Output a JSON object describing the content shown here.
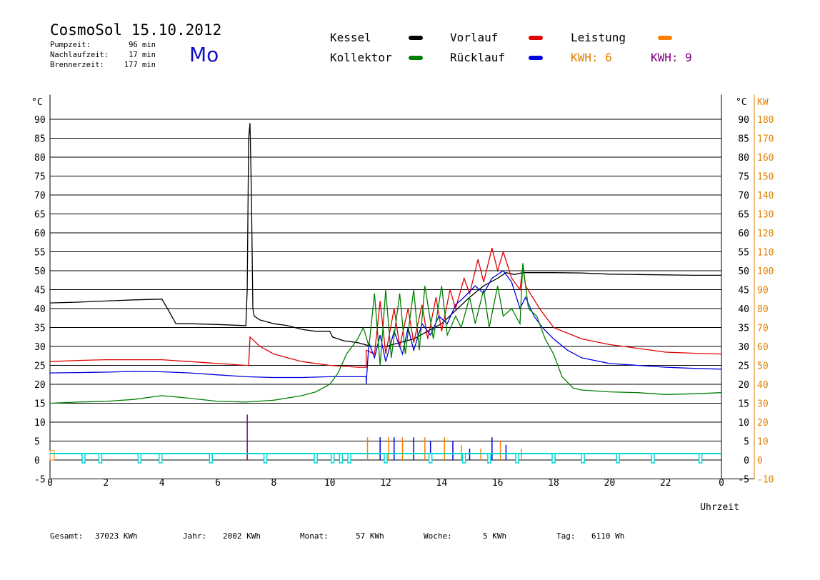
{
  "header": {
    "title": "CosmoSol 15.10.2012",
    "day": "Mo",
    "info": [
      {
        "label": "Pumpzeit:",
        "value": "96 min"
      },
      {
        "label": "Nachlaufzeit:",
        "value": "17 min"
      },
      {
        "label": "Brennerzeit:",
        "value": "177 min"
      }
    ]
  },
  "legend": {
    "kessel": {
      "label": "Kessel",
      "color": "#000000"
    },
    "vorlauf": {
      "label": "Vorlauf",
      "color": "#e00000"
    },
    "leistung": {
      "label": "Leistung",
      "color": "#ff8000"
    },
    "kollektor": {
      "label": "Kollektor",
      "color": "#008000"
    },
    "ruecklauf": {
      "label": "Rücklauf",
      "color": "#0000e0"
    },
    "kwh1": {
      "label": "KWH: 6",
      "color": "#e08000"
    },
    "kwh2": {
      "label": "KWH: 9",
      "color": "#800080"
    }
  },
  "footer": {
    "gesamt": {
      "label": "Gesamt:",
      "value": "37023 KWh"
    },
    "jahr": {
      "label": "Jahr:",
      "value": "2002 KWh"
    },
    "monat": {
      "label": "Monat:",
      "value": "57 KWh"
    },
    "woche": {
      "label": "Woche:",
      "value": "5 KWh"
    },
    "tag": {
      "label": "Tag:",
      "value": "6110 Wh"
    }
  },
  "chart_data": {
    "type": "line",
    "xlabel": "Uhrzeit",
    "ylabel": "°C",
    "y2label": "KW",
    "xlim": [
      0,
      24
    ],
    "ylim": [
      -5,
      95
    ],
    "x_ticks": [
      "0",
      "2",
      "4",
      "6",
      "8",
      "10",
      "12",
      "14",
      "16",
      "18",
      "20",
      "22",
      "0"
    ],
    "y_ticks": [
      -5,
      0,
      5,
      10,
      15,
      20,
      25,
      30,
      35,
      40,
      45,
      50,
      55,
      60,
      65,
      70,
      75,
      80,
      85,
      90
    ],
    "y2_ticks": [
      -10,
      0,
      10,
      20,
      30,
      40,
      50,
      60,
      70,
      80,
      90,
      100,
      110,
      120,
      130,
      140,
      150,
      160,
      170,
      180
    ],
    "colors": {
      "pump": "#00d8d8"
    },
    "series": [
      {
        "name": "Kessel",
        "color": "#000000",
        "points": [
          [
            0,
            41.5
          ],
          [
            1,
            41.7
          ],
          [
            2,
            42
          ],
          [
            3,
            42.3
          ],
          [
            4,
            42.5
          ],
          [
            4.2,
            40
          ],
          [
            4.5,
            36
          ],
          [
            5,
            36
          ],
          [
            6,
            35.8
          ],
          [
            7,
            35.5
          ],
          [
            7.05,
            45
          ],
          [
            7.1,
            85
          ],
          [
            7.15,
            89
          ],
          [
            7.2,
            70
          ],
          [
            7.25,
            40
          ],
          [
            7.3,
            38
          ],
          [
            7.5,
            37
          ],
          [
            8,
            36
          ],
          [
            8.5,
            35.5
          ],
          [
            9,
            34.5
          ],
          [
            9.5,
            34
          ],
          [
            10,
            34
          ],
          [
            10.1,
            32.5
          ],
          [
            10.5,
            31.5
          ],
          [
            11,
            31
          ],
          [
            11.5,
            30
          ],
          [
            12,
            30
          ],
          [
            13,
            32
          ],
          [
            14,
            36
          ],
          [
            15,
            43
          ],
          [
            15.5,
            46
          ],
          [
            16,
            48
          ],
          [
            16.3,
            49.5
          ],
          [
            16.6,
            49
          ],
          [
            16.9,
            49.5
          ],
          [
            17,
            49.5
          ],
          [
            17.5,
            49.5
          ],
          [
            18,
            49.5
          ],
          [
            19,
            49.4
          ],
          [
            20,
            49.1
          ],
          [
            21,
            49
          ],
          [
            22,
            48.9
          ],
          [
            23,
            48.8
          ],
          [
            24,
            48.8
          ]
        ]
      },
      {
        "name": "Vorlauf",
        "color": "#e00000",
        "points": [
          [
            0,
            26
          ],
          [
            1,
            26.3
          ],
          [
            2,
            26.5
          ],
          [
            3,
            26.5
          ],
          [
            4,
            26.5
          ],
          [
            5,
            26
          ],
          [
            6,
            25.5
          ],
          [
            7,
            25
          ],
          [
            7.1,
            25
          ],
          [
            7.15,
            32.5
          ],
          [
            7.5,
            30
          ],
          [
            8,
            28
          ],
          [
            9,
            26
          ],
          [
            10,
            25
          ],
          [
            11,
            24.5
          ],
          [
            11.3,
            24.5
          ],
          [
            11.3,
            29
          ],
          [
            11.6,
            28
          ],
          [
            11.8,
            42
          ],
          [
            12,
            28
          ],
          [
            12.3,
            40
          ],
          [
            12.5,
            30
          ],
          [
            12.8,
            40
          ],
          [
            13,
            31
          ],
          [
            13.3,
            41
          ],
          [
            13.5,
            32
          ],
          [
            13.8,
            43
          ],
          [
            14,
            34
          ],
          [
            14.3,
            45
          ],
          [
            14.5,
            40
          ],
          [
            14.8,
            48
          ],
          [
            15,
            44
          ],
          [
            15.3,
            53
          ],
          [
            15.5,
            47
          ],
          [
            15.8,
            56
          ],
          [
            16,
            50
          ],
          [
            16.2,
            55
          ],
          [
            16.5,
            48
          ],
          [
            16.8,
            45
          ],
          [
            16.9,
            51
          ],
          [
            17,
            46
          ],
          [
            17.5,
            40
          ],
          [
            18,
            35
          ],
          [
            19,
            32
          ],
          [
            20,
            30.5
          ],
          [
            21,
            29.5
          ],
          [
            22,
            28.5
          ],
          [
            23,
            28.2
          ],
          [
            24,
            28
          ]
        ]
      },
      {
        "name": "Rücklauf",
        "color": "#0000e0",
        "points": [
          [
            0,
            23
          ],
          [
            1,
            23.1
          ],
          [
            2,
            23.2
          ],
          [
            3,
            23.4
          ],
          [
            4,
            23.3
          ],
          [
            5,
            23
          ],
          [
            6,
            22.5
          ],
          [
            7,
            22
          ],
          [
            8,
            21.8
          ],
          [
            9,
            21.8
          ],
          [
            10,
            22
          ],
          [
            11,
            22
          ],
          [
            11.3,
            22
          ],
          [
            11.3,
            20
          ],
          [
            11.4,
            31
          ],
          [
            11.6,
            27
          ],
          [
            11.8,
            33
          ],
          [
            12,
            26
          ],
          [
            12.3,
            34
          ],
          [
            12.6,
            28
          ],
          [
            12.8,
            35
          ],
          [
            13,
            29
          ],
          [
            13.3,
            36
          ],
          [
            13.6,
            33
          ],
          [
            13.9,
            38
          ],
          [
            14.2,
            36
          ],
          [
            14.5,
            41
          ],
          [
            14.8,
            43
          ],
          [
            15.2,
            46
          ],
          [
            15.5,
            44
          ],
          [
            15.8,
            48
          ],
          [
            16.2,
            50
          ],
          [
            16.5,
            47
          ],
          [
            16.8,
            40
          ],
          [
            17,
            43
          ],
          [
            17.3,
            38
          ],
          [
            17.6,
            35
          ],
          [
            18,
            32
          ],
          [
            18.5,
            29
          ],
          [
            19,
            27
          ],
          [
            20,
            25.5
          ],
          [
            21,
            25
          ],
          [
            22,
            24.5
          ],
          [
            23,
            24.2
          ],
          [
            24,
            24
          ]
        ]
      },
      {
        "name": "Kollektor",
        "color": "#008000",
        "points": [
          [
            0,
            15
          ],
          [
            1,
            15.3
          ],
          [
            2,
            15.5
          ],
          [
            3,
            16
          ],
          [
            4,
            17
          ],
          [
            5,
            16.3
          ],
          [
            6,
            15.5
          ],
          [
            7,
            15.3
          ],
          [
            8,
            15.8
          ],
          [
            9,
            17
          ],
          [
            9.5,
            18
          ],
          [
            10,
            20
          ],
          [
            10.3,
            23
          ],
          [
            10.6,
            28
          ],
          [
            11,
            32
          ],
          [
            11.2,
            35
          ],
          [
            11.4,
            30
          ],
          [
            11.6,
            44
          ],
          [
            11.8,
            25
          ],
          [
            12,
            45
          ],
          [
            12.2,
            27
          ],
          [
            12.5,
            44
          ],
          [
            12.7,
            28
          ],
          [
            13,
            45
          ],
          [
            13.2,
            29
          ],
          [
            13.4,
            46
          ],
          [
            13.7,
            32
          ],
          [
            14,
            46
          ],
          [
            14.2,
            33
          ],
          [
            14.5,
            38
          ],
          [
            14.7,
            35
          ],
          [
            15,
            43
          ],
          [
            15.2,
            36
          ],
          [
            15.5,
            45
          ],
          [
            15.7,
            35
          ],
          [
            16,
            46
          ],
          [
            16.2,
            38
          ],
          [
            16.5,
            40
          ],
          [
            16.8,
            36
          ],
          [
            16.9,
            52
          ],
          [
            17.1,
            40
          ],
          [
            17.4,
            38
          ],
          [
            17.7,
            32
          ],
          [
            18,
            28
          ],
          [
            18.3,
            22
          ],
          [
            18.7,
            19
          ],
          [
            19,
            18.5
          ],
          [
            20,
            18
          ],
          [
            21,
            17.8
          ],
          [
            22,
            17.3
          ],
          [
            23,
            17.5
          ],
          [
            24,
            17.8
          ]
        ]
      }
    ],
    "pump_markers": [
      1.2,
      1.8,
      3.2,
      3.95,
      5.75,
      7.7,
      9.5,
      10.1,
      10.4,
      10.7,
      12.0,
      13.6,
      14.8,
      15.7,
      16.7,
      18.0,
      19.05,
      20.3,
      21.55,
      23.25
    ],
    "spikes": [
      [
        7.05,
        12
      ],
      [
        11.35,
        6
      ],
      [
        11.8,
        6
      ],
      [
        12.1,
        6
      ],
      [
        12.3,
        6
      ],
      [
        12.6,
        6
      ],
      [
        13.0,
        6
      ],
      [
        13.4,
        6
      ],
      [
        13.6,
        5
      ],
      [
        14.1,
        6
      ],
      [
        14.4,
        5
      ],
      [
        14.7,
        4
      ],
      [
        15.0,
        3
      ],
      [
        15.4,
        3
      ],
      [
        15.8,
        6
      ],
      [
        16.1,
        5
      ],
      [
        16.3,
        4
      ],
      [
        16.85,
        3
      ]
    ]
  }
}
